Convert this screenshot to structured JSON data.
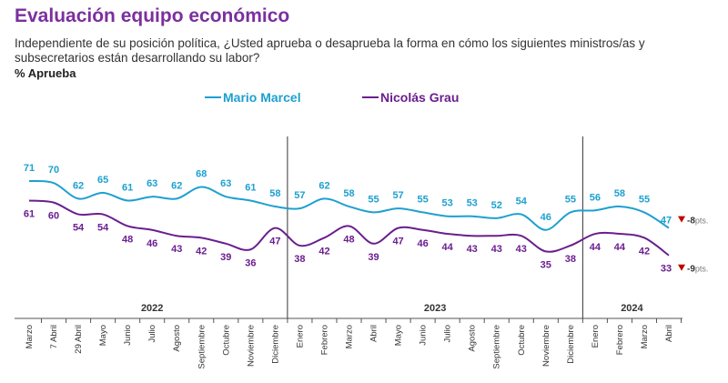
{
  "title": "Evaluación equipo económico",
  "subtitle": "Independiente de su posición política, ¿Usted aprueba o desaprueba la forma en cómo los siguientes ministros/as y subsecretarios están desarrollando su labor?",
  "measure": "% Aprueba",
  "chart_data": {
    "type": "line",
    "categories": [
      "Marzo",
      "7 Abril",
      "29 Abril",
      "Mayo",
      "Junio",
      "Julio",
      "Agosto",
      "Septiembre",
      "Octubre",
      "Noviembre",
      "Diciembre",
      "Enero",
      "Febrero",
      "Marzo",
      "Abril",
      "Mayo",
      "Junio",
      "Julio",
      "Agosto",
      "Septiembre",
      "Octubre",
      "Noviembre",
      "Diciembre",
      "Enero",
      "Febrero",
      "Marzo",
      "Abril"
    ],
    "years": [
      {
        "label": "2022",
        "from": 0,
        "to": 10
      },
      {
        "label": "2023",
        "from": 11,
        "to": 22
      },
      {
        "label": "2024",
        "from": 23,
        "to": 26
      }
    ],
    "series": [
      {
        "name": "Mario Marcel",
        "color": "#1ea0d0",
        "values": [
          71,
          70,
          62,
          65,
          61,
          63,
          62,
          68,
          63,
          61,
          58,
          57,
          62,
          58,
          55,
          57,
          55,
          53,
          53,
          52,
          54,
          46,
          55,
          56,
          58,
          55,
          47
        ],
        "change": "-8",
        "change_unit": "pts."
      },
      {
        "name": "Nicolás Grau",
        "color": "#6a1e8e",
        "values": [
          61,
          60,
          54,
          54,
          48,
          46,
          43,
          42,
          39,
          36,
          47,
          38,
          42,
          48,
          39,
          47,
          46,
          44,
          43,
          43,
          43,
          35,
          38,
          44,
          44,
          42,
          33
        ],
        "change": "-9",
        "change_unit": "pts."
      }
    ],
    "legend": "top",
    "grid": false,
    "down_arrow_color": "#c00000"
  }
}
